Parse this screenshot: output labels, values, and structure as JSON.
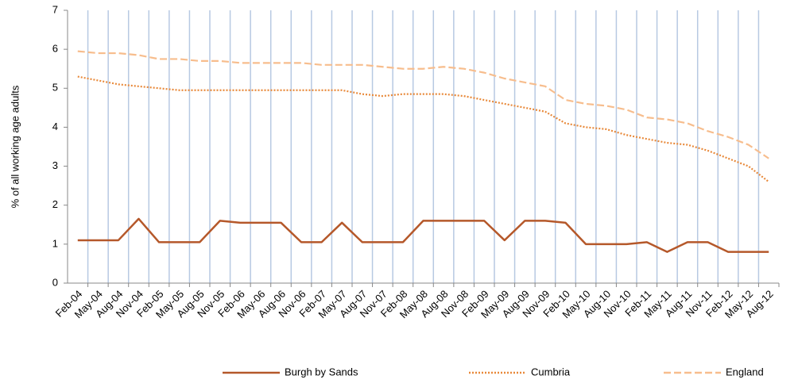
{
  "chart_data": {
    "type": "line",
    "ylabel": "% of all working age adults",
    "categories": [
      "Feb-04",
      "May-04",
      "Aug-04",
      "Nov-04",
      "Feb-05",
      "May-05",
      "Aug-05",
      "Nov-05",
      "Feb-06",
      "May-06",
      "Aug-06",
      "Nov-06",
      "Feb-07",
      "May-07",
      "Aug-07",
      "Nov-07",
      "Feb-08",
      "May-08",
      "Aug-08",
      "Nov-08",
      "Feb-09",
      "May-09",
      "Aug-09",
      "Nov-09",
      "Feb-10",
      "May-10",
      "Aug-10",
      "Nov-10",
      "Feb-11",
      "May-11",
      "Aug-11",
      "Nov-11",
      "Feb-12",
      "May-12",
      "Aug-12"
    ],
    "series": [
      {
        "name": "Burgh by Sands",
        "color": "#b5582a",
        "dash": "solid",
        "values": [
          1.1,
          1.1,
          1.1,
          1.65,
          1.05,
          1.05,
          1.05,
          1.6,
          1.55,
          1.55,
          1.55,
          1.05,
          1.05,
          1.55,
          1.05,
          1.05,
          1.05,
          1.6,
          1.6,
          1.6,
          1.6,
          1.1,
          1.6,
          1.6,
          1.55,
          1.0,
          1.0,
          1.0,
          1.05,
          0.8,
          1.05,
          1.05,
          0.8,
          0.8,
          0.8
        ]
      },
      {
        "name": "Cumbria",
        "color": "#e8893a",
        "dash": "dotted",
        "values": [
          5.3,
          5.2,
          5.1,
          5.05,
          5.0,
          4.95,
          4.95,
          4.95,
          4.95,
          4.95,
          4.95,
          4.95,
          4.95,
          4.95,
          4.85,
          4.8,
          4.85,
          4.85,
          4.85,
          4.8,
          4.7,
          4.6,
          4.5,
          4.4,
          4.1,
          4.0,
          3.95,
          3.8,
          3.7,
          3.6,
          3.55,
          3.4,
          3.2,
          3.0,
          2.6
        ]
      },
      {
        "name": "England",
        "color": "#f7bd8d",
        "dash": "dashed",
        "values": [
          5.95,
          5.9,
          5.9,
          5.85,
          5.75,
          5.75,
          5.7,
          5.7,
          5.65,
          5.65,
          5.65,
          5.65,
          5.6,
          5.6,
          5.6,
          5.55,
          5.5,
          5.5,
          5.55,
          5.5,
          5.4,
          5.25,
          5.15,
          5.05,
          4.7,
          4.6,
          4.55,
          4.45,
          4.25,
          4.2,
          4.1,
          3.9,
          3.75,
          3.55,
          3.2
        ]
      }
    ],
    "ylim": [
      0,
      7
    ],
    "yticks": [
      0,
      1,
      2,
      3,
      4,
      5,
      6,
      7
    ],
    "grid": "x",
    "grid_color": "#b7c9e2",
    "legend": "bottom"
  }
}
